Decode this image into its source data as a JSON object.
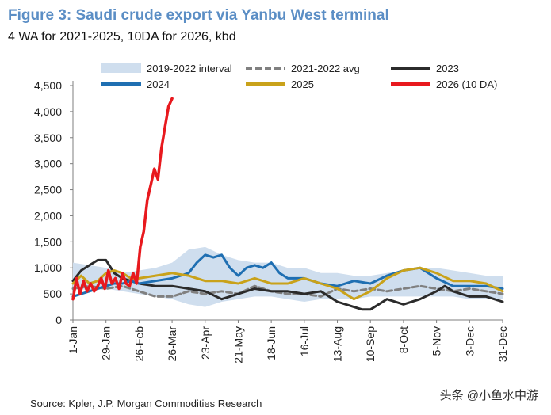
{
  "header": {
    "title": "Figure 3: Saudi crude export via Yanbu West terminal",
    "subtitle": "4 WA for 2021-2025, 10DA for 2026, kbd"
  },
  "footer": {
    "source": "Source: Kpler, J.P. Morgan Commodities Research",
    "watermark": "头条 @小鱼水中游"
  },
  "chart_data": {
    "type": "line",
    "title": "Saudi crude export via Yanbu West terminal",
    "ylabel": "kbd",
    "xlabel": "",
    "ylim": [
      0,
      4500
    ],
    "yticks": [
      0,
      500,
      1000,
      1500,
      2000,
      2500,
      3000,
      3500,
      4000,
      4500
    ],
    "ytick_labels": [
      "0",
      "500",
      "1,000",
      "1,500",
      "2,000",
      "2,500",
      "3,000",
      "3,500",
      "4,000",
      "4,500"
    ],
    "xlim": [
      0,
      364
    ],
    "xticks": [
      0,
      28,
      56,
      84,
      112,
      140,
      168,
      196,
      224,
      252,
      280,
      308,
      336,
      364
    ],
    "xtick_labels": [
      "1-Jan",
      "29-Jan",
      "26-Feb",
      "26-Mar",
      "23-Apr",
      "21-May",
      "18-Jun",
      "16-Jul",
      "13-Aug",
      "10-Sep",
      "8-Oct",
      "5-Nov",
      "3-Dec",
      "31-Dec"
    ],
    "colors": {
      "interval": "#cfdeee",
      "avg": "#808080",
      "y2023": "#2b2b2b",
      "y2024": "#1f6fb2",
      "y2025": "#c9a21a",
      "y2026": "#e8191e"
    },
    "legend": {
      "position": "top",
      "entries": [
        "2019-2022 interval",
        "2021-2022 avg",
        "2023",
        "2024",
        "2025",
        "2026 (10 DA)"
      ]
    },
    "series": [
      {
        "name": "2019-2022 interval",
        "kind": "band",
        "x": [
          0,
          14,
          28,
          42,
          56,
          70,
          84,
          98,
          112,
          126,
          140,
          154,
          168,
          182,
          196,
          210,
          224,
          238,
          252,
          266,
          280,
          294,
          308,
          322,
          336,
          350,
          364
        ],
        "low": [
          650,
          550,
          600,
          550,
          500,
          450,
          400,
          300,
          250,
          350,
          400,
          450,
          450,
          400,
          350,
          400,
          400,
          400,
          450,
          450,
          450,
          450,
          450,
          450,
          400,
          400,
          400
        ],
        "high": [
          1100,
          1050,
          1000,
          900,
          950,
          1000,
          1100,
          1350,
          1400,
          1250,
          1150,
          1100,
          1100,
          1000,
          1000,
          900,
          900,
          850,
          850,
          900,
          950,
          1000,
          1000,
          950,
          900,
          850,
          850
        ]
      },
      {
        "name": "2021-2022 avg",
        "kind": "line",
        "x": [
          0,
          14,
          28,
          42,
          56,
          70,
          84,
          98,
          112,
          126,
          140,
          154,
          168,
          182,
          196,
          210,
          224,
          238,
          252,
          266,
          280,
          294,
          308,
          322,
          336,
          350,
          364
        ],
        "values": [
          600,
          650,
          600,
          650,
          550,
          450,
          450,
          550,
          500,
          550,
          500,
          650,
          550,
          500,
          500,
          450,
          600,
          550,
          600,
          550,
          600,
          650,
          600,
          550,
          600,
          550,
          500
        ]
      },
      {
        "name": "2023",
        "kind": "line",
        "x": [
          0,
          7,
          14,
          21,
          28,
          35,
          42,
          49,
          56,
          70,
          84,
          98,
          112,
          126,
          140,
          154,
          168,
          182,
          196,
          210,
          224,
          238,
          245,
          252,
          259,
          266,
          280,
          294,
          308,
          315,
          322,
          336,
          350,
          364
        ],
        "values": [
          750,
          950,
          1050,
          1150,
          1150,
          900,
          800,
          750,
          700,
          650,
          650,
          600,
          550,
          400,
          500,
          600,
          550,
          550,
          500,
          550,
          350,
          250,
          200,
          200,
          300,
          400,
          300,
          400,
          550,
          650,
          550,
          450,
          450,
          350
        ]
      },
      {
        "name": "2024",
        "kind": "line",
        "x": [
          0,
          7,
          14,
          21,
          28,
          35,
          42,
          49,
          56,
          70,
          84,
          98,
          105,
          112,
          119,
          126,
          133,
          140,
          147,
          154,
          161,
          168,
          175,
          182,
          196,
          210,
          224,
          238,
          252,
          266,
          280,
          294,
          308,
          322,
          336,
          350,
          364
        ],
        "values": [
          450,
          500,
          550,
          600,
          650,
          700,
          700,
          750,
          700,
          750,
          800,
          900,
          1100,
          1250,
          1200,
          1250,
          1000,
          850,
          1000,
          1050,
          1000,
          1100,
          900,
          800,
          800,
          700,
          650,
          750,
          700,
          850,
          950,
          1000,
          800,
          650,
          650,
          650,
          600
        ]
      },
      {
        "name": "2025",
        "kind": "line",
        "x": [
          0,
          7,
          14,
          21,
          28,
          35,
          42,
          49,
          56,
          70,
          84,
          98,
          112,
          126,
          140,
          154,
          168,
          182,
          196,
          210,
          224,
          238,
          252,
          266,
          280,
          294,
          308,
          322,
          336,
          350,
          364
        ],
        "values": [
          700,
          850,
          700,
          750,
          900,
          950,
          900,
          800,
          800,
          850,
          900,
          850,
          750,
          750,
          700,
          800,
          700,
          700,
          800,
          700,
          600,
          400,
          550,
          800,
          950,
          1000,
          900,
          750,
          750,
          700,
          550
        ]
      },
      {
        "name": "2026 (10 DA)",
        "kind": "line",
        "x": [
          0,
          3,
          6,
          9,
          12,
          15,
          18,
          21,
          24,
          27,
          30,
          33,
          36,
          39,
          42,
          45,
          48,
          51,
          54,
          57,
          60,
          63,
          66,
          69,
          72,
          75,
          78,
          81,
          84
        ],
        "values": [
          400,
          800,
          500,
          750,
          550,
          700,
          550,
          650,
          800,
          600,
          950,
          700,
          800,
          600,
          900,
          700,
          650,
          900,
          700,
          1400,
          1700,
          2300,
          2600,
          2900,
          2700,
          3300,
          3700,
          4100,
          4250
        ]
      }
    ]
  }
}
